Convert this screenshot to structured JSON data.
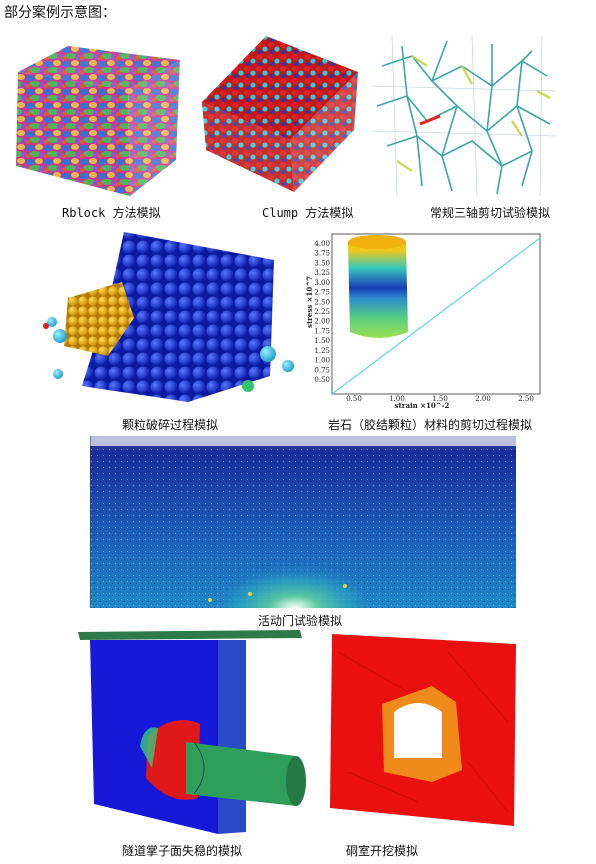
{
  "heading": "部分案例示意图：",
  "captions": {
    "rblock": "Rblock 方法模拟",
    "clump": "Clump 方法模拟",
    "triaxial": "常规三轴剪切试验模拟",
    "breakage": "颗粒破碎过程模拟",
    "rock_shear": "岩石（胶结颗粒）材料的剪切过程模拟",
    "trapdoor": "活动门试验模拟",
    "tunnel_face": "隧道掌子面失稳的模拟",
    "chamber": "硐室开挖模拟"
  },
  "stress_plot": {
    "ylabel": "stress ×10^7",
    "xlabel": "strain ×10^-2",
    "yticks": [
      "0.50",
      "0.75",
      "1.00",
      "1.25",
      "1.50",
      "1.75",
      "2.00",
      "2.25",
      "2.50",
      "2.75",
      "3.00",
      "3.25",
      "3.50",
      "3.75",
      "4.00"
    ],
    "xticks": [
      "0.50",
      "1.00",
      "1.50",
      "2.00",
      "2.50"
    ]
  },
  "colors": {
    "line": "#55d8e8",
    "blue_particles": "#1a2fd0",
    "gold_particles": "#e8a800",
    "red_block": "#e81010",
    "green_lining": "#2f9e5a"
  }
}
